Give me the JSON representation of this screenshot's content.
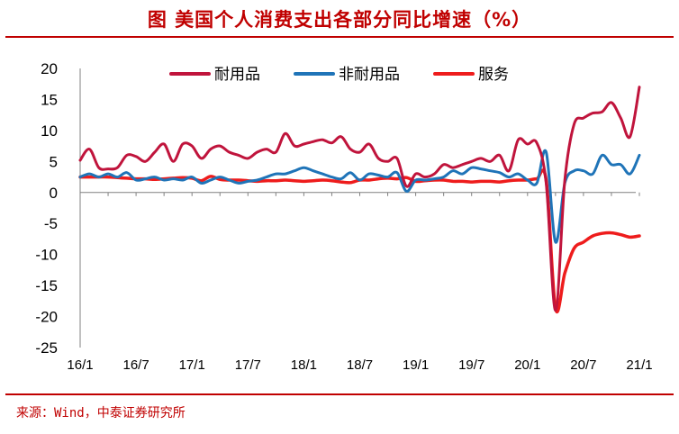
{
  "figure_title": "图 美国个人消费支出各部分同比增速（%）",
  "source": "来源：Wind，中泰证券研究所",
  "chart_data": {
    "type": "line",
    "ylim": [
      -25,
      20
    ],
    "yticks": [
      20,
      15,
      10,
      5,
      0,
      -5,
      -10,
      -15,
      -20,
      -25
    ],
    "xtick_labels": [
      "16/1",
      "16/7",
      "17/1",
      "17/7",
      "18/1",
      "18/7",
      "19/1",
      "19/7",
      "20/1",
      "20/7",
      "21/1"
    ],
    "legend_position": "top",
    "x": [
      "2016-01",
      "2016-02",
      "2016-03",
      "2016-04",
      "2016-05",
      "2016-06",
      "2016-07",
      "2016-08",
      "2016-09",
      "2016-10",
      "2016-11",
      "2016-12",
      "2017-01",
      "2017-02",
      "2017-03",
      "2017-04",
      "2017-05",
      "2017-06",
      "2017-07",
      "2017-08",
      "2017-09",
      "2017-10",
      "2017-11",
      "2017-12",
      "2018-01",
      "2018-02",
      "2018-03",
      "2018-04",
      "2018-05",
      "2018-06",
      "2018-07",
      "2018-08",
      "2018-09",
      "2018-10",
      "2018-11",
      "2018-12",
      "2019-01",
      "2019-02",
      "2019-03",
      "2019-04",
      "2019-05",
      "2019-06",
      "2019-07",
      "2019-08",
      "2019-09",
      "2019-10",
      "2019-11",
      "2019-12",
      "2020-01",
      "2020-02",
      "2020-03",
      "2020-04",
      "2020-05",
      "2020-06",
      "2020-07",
      "2020-08",
      "2020-09",
      "2020-10",
      "2020-11",
      "2020-12",
      "2021-01"
    ],
    "series": [
      {
        "name": "耐用品",
        "color": "#c0143c",
        "values": [
          5.2,
          7.0,
          4.0,
          3.8,
          4.0,
          6.0,
          5.8,
          5.0,
          6.5,
          7.8,
          5.0,
          7.8,
          7.5,
          5.5,
          7.0,
          7.5,
          6.5,
          6.0,
          5.5,
          6.5,
          7.0,
          6.5,
          9.5,
          7.5,
          7.8,
          8.2,
          8.5,
          8.0,
          9.0,
          7.0,
          6.5,
          7.8,
          5.5,
          5.0,
          5.5,
          1.0,
          3.0,
          2.5,
          3.0,
          4.5,
          4.0,
          4.5,
          5.0,
          5.5,
          5.0,
          6.0,
          3.5,
          8.5,
          7.8,
          8.0,
          1.5,
          -19.0,
          2.0,
          11.0,
          12.0,
          12.8,
          13.0,
          14.5,
          12.0,
          9.0,
          17.0
        ]
      },
      {
        "name": "非耐用品",
        "color": "#1f74b8",
        "values": [
          2.5,
          3.0,
          2.5,
          3.0,
          2.5,
          3.2,
          2.0,
          2.2,
          2.5,
          2.0,
          2.2,
          2.0,
          2.5,
          1.5,
          2.0,
          2.5,
          2.0,
          1.5,
          1.8,
          2.0,
          2.5,
          3.0,
          3.0,
          3.5,
          4.0,
          3.5,
          3.0,
          2.5,
          2.2,
          3.2,
          2.0,
          3.0,
          2.8,
          2.5,
          3.2,
          0.2,
          2.0,
          2.0,
          2.2,
          2.5,
          3.5,
          3.0,
          4.0,
          3.8,
          3.5,
          3.2,
          2.5,
          3.0,
          2.0,
          1.5,
          6.5,
          -8.0,
          1.5,
          3.5,
          3.5,
          3.0,
          6.0,
          4.5,
          4.5,
          3.0,
          6.0
        ]
      },
      {
        "name": "服务",
        "color": "#ee1c1c",
        "values": [
          2.5,
          2.5,
          2.5,
          2.5,
          2.4,
          2.3,
          2.2,
          2.2,
          2.1,
          2.2,
          2.3,
          2.4,
          2.3,
          1.9,
          2.6,
          2.1,
          2.0,
          2.0,
          1.9,
          1.8,
          1.9,
          1.9,
          2.0,
          1.9,
          1.8,
          1.9,
          2.0,
          1.9,
          1.7,
          1.6,
          2.0,
          2.0,
          2.2,
          2.3,
          2.2,
          2.4,
          1.8,
          1.9,
          2.0,
          2.0,
          1.8,
          1.8,
          1.7,
          1.8,
          1.8,
          1.7,
          1.9,
          2.0,
          2.0,
          2.2,
          2.0,
          -18.7,
          -13.0,
          -9.0,
          -8.0,
          -7.0,
          -6.6,
          -6.5,
          -6.8,
          -7.2,
          -7.0
        ]
      }
    ]
  }
}
